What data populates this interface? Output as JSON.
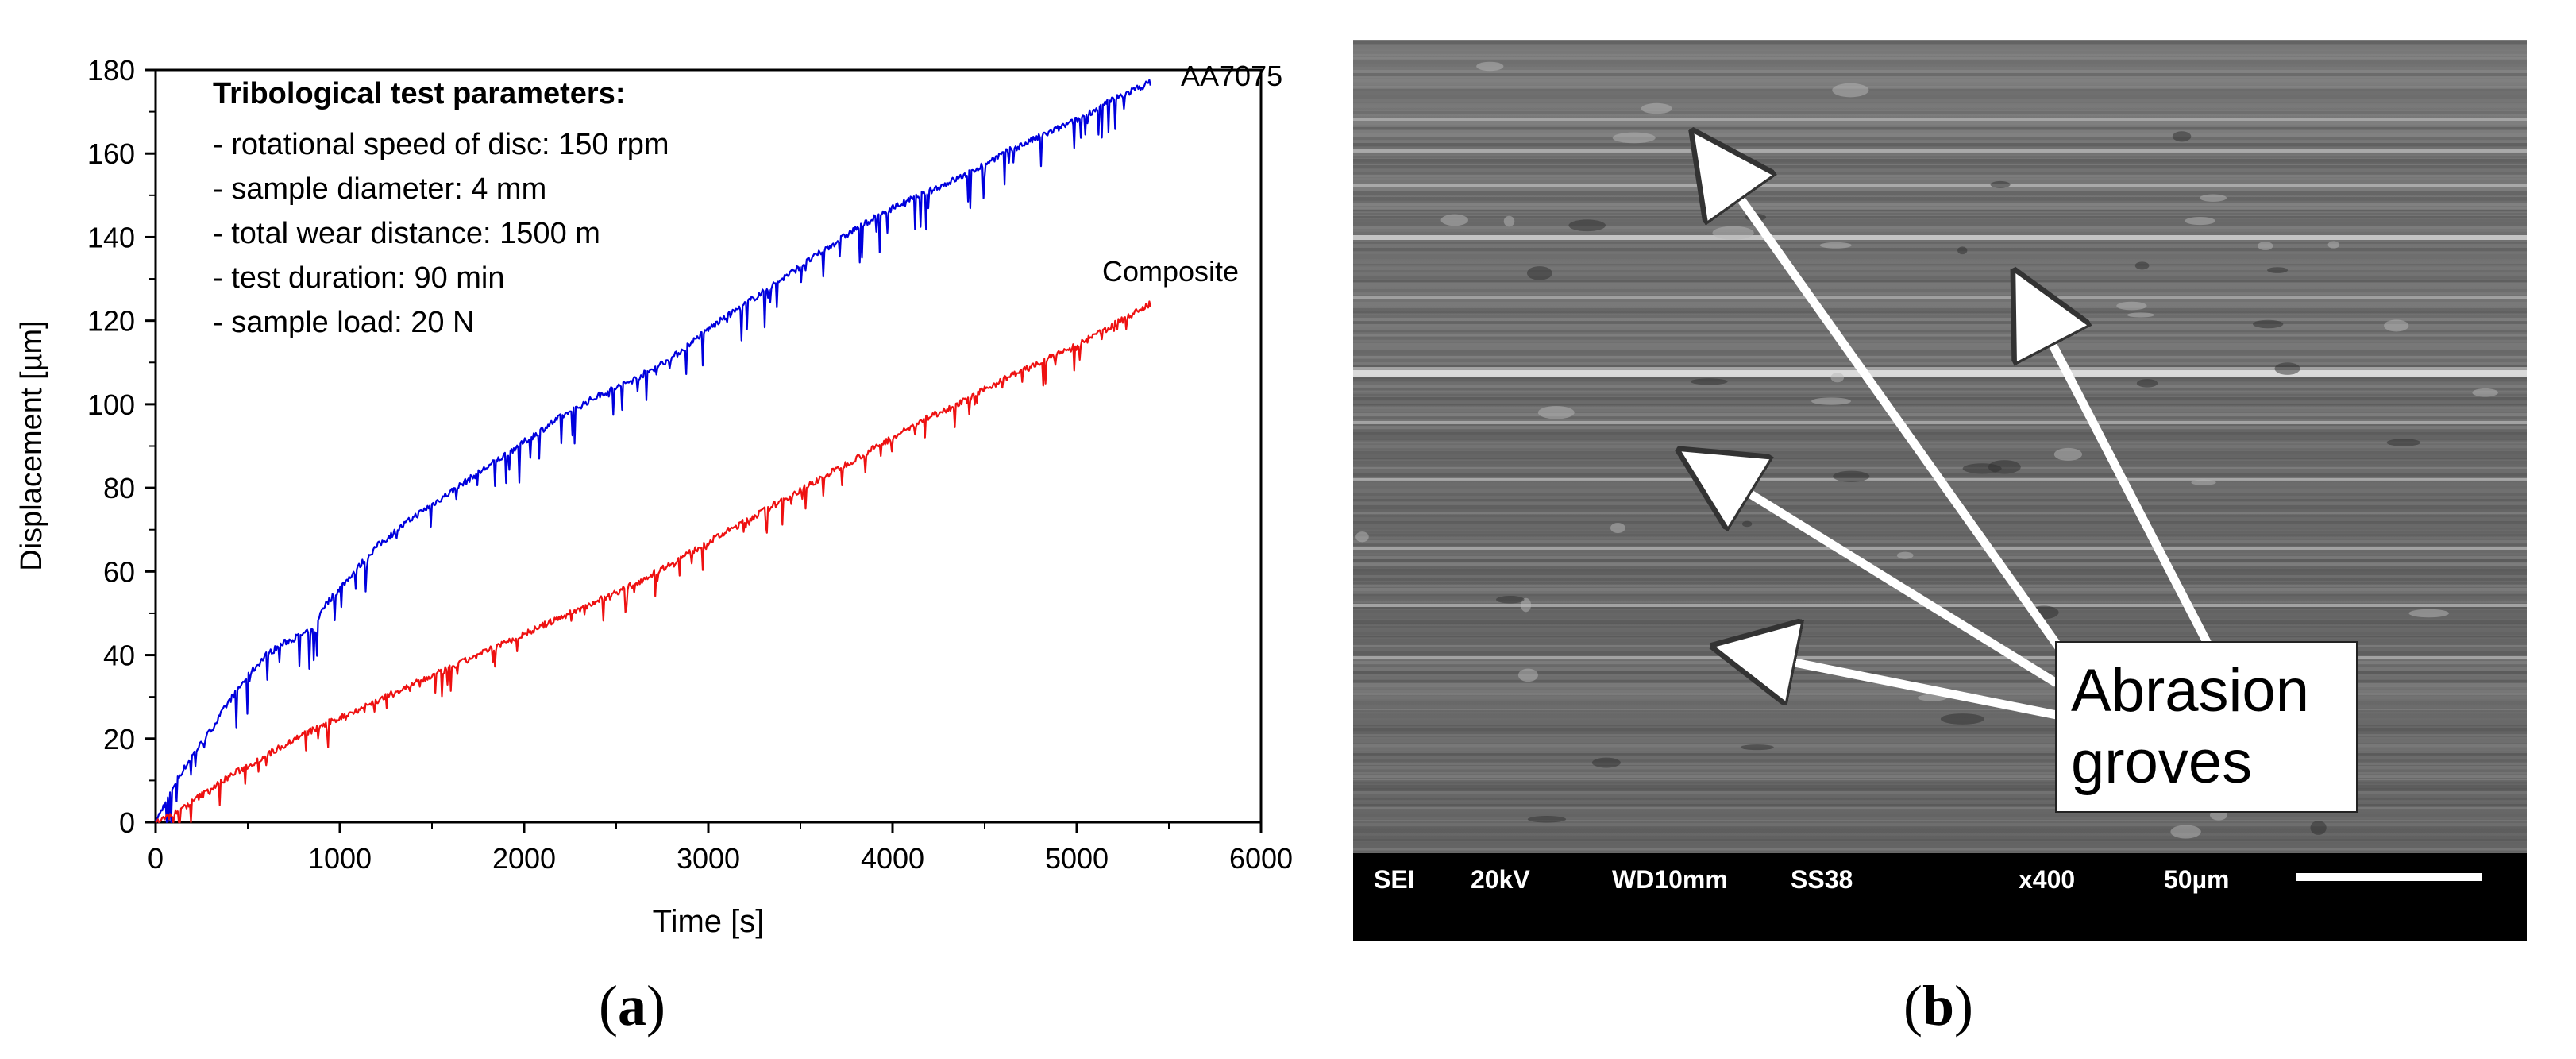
{
  "panels": {
    "a": {
      "label_open": "(",
      "label_letter": "a",
      "label_close": ")"
    },
    "b": {
      "label_open": "(",
      "label_letter": "b",
      "label_close": ")",
      "sem": {
        "callout_line1": "Abrasion",
        "callout_line2": "groves",
        "info_bar": {
          "mode": "SEI",
          "voltage": "20kV",
          "working_distance": "WD10mm",
          "spot_size": "SS38",
          "magnification": "x400",
          "scale": "50µm"
        }
      }
    }
  },
  "annotation": {
    "title": "Tribological test parameters:",
    "lines": [
      "- rotational speed of disc: 150 rpm",
      "- sample diameter: 4 mm",
      "- total wear distance: 1500 m",
      "- test duration: 90 min",
      "- sample load: 20 N"
    ]
  },
  "colors": {
    "aa7075": "#0000dd",
    "composite": "#ee1111",
    "axis": "#000000",
    "sem_bg": "#6e6e6e",
    "sem_bar": "#000000"
  },
  "chart_data": {
    "type": "line",
    "title": "",
    "xlabel": "Time [s]",
    "ylabel": "Displacement [µm]",
    "xlim": [
      0,
      6000
    ],
    "ylim": [
      0,
      180
    ],
    "xticks": [
      0,
      1000,
      2000,
      3000,
      4000,
      5000,
      6000
    ],
    "yticks": [
      0,
      20,
      40,
      60,
      80,
      100,
      120,
      140,
      160,
      180
    ],
    "xtick_labels": [
      "0",
      "1000",
      "2000",
      "3000",
      "4000",
      "5000",
      "6000"
    ],
    "ytick_labels": [
      "0",
      "20",
      "40",
      "60",
      "80",
      "100",
      "120",
      "140",
      "160",
      "180"
    ],
    "series": [
      {
        "name": "AA7075",
        "color": "#0000dd",
        "x": [
          0,
          100,
          200,
          300,
          400,
          500,
          600,
          700,
          800,
          870,
          900,
          1000,
          1200,
          1400,
          1600,
          1800,
          2000,
          2200,
          2400,
          2600,
          2800,
          3000,
          3200,
          3400,
          3600,
          3800,
          4000,
          4200,
          4400,
          4600,
          4800,
          5000,
          5200,
          5400
        ],
        "y": [
          0,
          9,
          16,
          22,
          29,
          35,
          40,
          43,
          45,
          46,
          51,
          56,
          66,
          73,
          79,
          85,
          91,
          97,
          102,
          106,
          111,
          118,
          124,
          130,
          136,
          142,
          147,
          151,
          155,
          160,
          164,
          168,
          173,
          177
        ]
      },
      {
        "name": "Composite",
        "color": "#ee1111",
        "x": [
          0,
          100,
          200,
          400,
          600,
          800,
          1000,
          1200,
          1400,
          1600,
          1800,
          2000,
          2200,
          2400,
          2600,
          2800,
          3000,
          3200,
          3400,
          3600,
          3800,
          4000,
          4200,
          4400,
          4600,
          4800,
          5000,
          5200,
          5400
        ],
        "y": [
          0,
          2,
          5,
          11,
          16,
          21,
          25,
          29,
          33,
          37,
          41,
          45,
          49,
          53,
          57,
          62,
          67,
          72,
          77,
          82,
          87,
          92,
          97,
          101,
          106,
          110,
          114,
          119,
          124
        ]
      }
    ]
  }
}
